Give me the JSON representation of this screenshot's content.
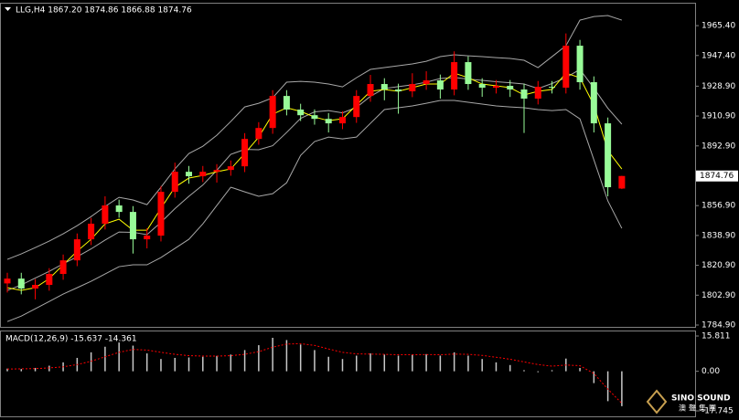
{
  "chart_data": [
    {
      "type": "candlestick",
      "title": "LLG,H4 1867.20 1874.86 1866.88 1874.76",
      "open": [
        1810.0,
        1812.9,
        1806.9,
        1809.1,
        1815.7,
        1823.9,
        1836.6,
        1846.0,
        1857.0,
        1853.1,
        1836.6,
        1838.8,
        1865.2,
        1877.3,
        1874.6,
        1877.3,
        1878.4,
        1880.6,
        1897.1,
        1903.7,
        1923.0,
        1914.8,
        1911.4,
        1909.2,
        1906.5,
        1910.3,
        1923.0,
        1930.2,
        1926.9,
        1925.8,
        1930.2,
        1932.4,
        1926.9,
        1943.4,
        1930.2,
        1928.0,
        1929.1,
        1926.9,
        1921.4,
        1928.5,
        1928.0,
        1953.3,
        1931.3,
        1906.5,
        1867.2
      ],
      "high": [
        1816.4,
        1816.4,
        1812.6,
        1819.2,
        1827.4,
        1840.1,
        1849.5,
        1862.5,
        1860.5,
        1856.6,
        1843.3,
        1868.7,
        1882.8,
        1880.8,
        1880.8,
        1881.9,
        1884.1,
        1900.6,
        1907.2,
        1926.5,
        1926.5,
        1918.3,
        1914.9,
        1912.7,
        1913.8,
        1926.5,
        1935.7,
        1933.7,
        1930.4,
        1936.7,
        1937.9,
        1935.9,
        1949.9,
        1946.9,
        1933.7,
        1932.6,
        1932.6,
        1930.4,
        1932.0,
        1932.0,
        1960.7,
        1956.8,
        1934.8,
        1910.0,
        1874.86
      ],
      "low": [
        1804.5,
        1803.4,
        1800.4,
        1805.6,
        1812.2,
        1820.4,
        1833.1,
        1842.5,
        1849.6,
        1828.0,
        1831.1,
        1835.3,
        1861.7,
        1870.1,
        1871.1,
        1870.8,
        1874.9,
        1877.1,
        1893.6,
        1900.2,
        1911.3,
        1907.9,
        1905.7,
        1901.0,
        1903.0,
        1906.8,
        1919.5,
        1920.4,
        1912.3,
        1922.3,
        1926.7,
        1921.4,
        1923.4,
        1926.7,
        1922.5,
        1924.5,
        1922.4,
        1900.7,
        1917.9,
        1924.5,
        1924.5,
        1926.8,
        1901.0,
        1862.5,
        1866.88
      ],
      "close": [
        1812.9,
        1806.9,
        1809.1,
        1815.7,
        1823.9,
        1836.6,
        1846.0,
        1857.0,
        1853.1,
        1836.6,
        1838.8,
        1865.2,
        1877.3,
        1874.6,
        1877.3,
        1878.4,
        1880.6,
        1897.1,
        1903.7,
        1923.0,
        1914.8,
        1911.4,
        1909.2,
        1906.5,
        1910.3,
        1923.0,
        1930.2,
        1926.9,
        1925.8,
        1930.2,
        1932.4,
        1926.9,
        1943.4,
        1930.2,
        1928.0,
        1929.1,
        1926.9,
        1921.4,
        1928.5,
        1928.0,
        1953.3,
        1931.3,
        1906.5,
        1868.0,
        1874.76
      ],
      "up_color": "#ff0000",
      "down_color": "#98fb98",
      "lines": [
        {
          "color": "#a8a8a8",
          "values": [
            1824.5,
            1827.8,
            1831.6,
            1835.5,
            1839.9,
            1844.8,
            1850.3,
            1856.4,
            1861.9,
            1860.3,
            1857.5,
            1868.0,
            1879.0,
            1888.3,
            1892.7,
            1899.3,
            1907.6,
            1916.4,
            1918.6,
            1921.9,
            1931.3,
            1931.8,
            1931.3,
            1930.2,
            1928.5,
            1934.0,
            1939.0,
            1940.1,
            1941.2,
            1942.3,
            1943.9,
            1946.7,
            1947.8,
            1947.2,
            1946.7,
            1946.1,
            1945.6,
            1944.5,
            1940.1,
            1946.7,
            1953.3,
            1968.7,
            1970.9,
            1971.5,
            1968.7
          ]
        },
        {
          "color": "#a8a8a8",
          "values": [
            1805.8,
            1809.1,
            1813.2,
            1817.3,
            1821.8,
            1826.1,
            1830.8,
            1836.1,
            1841.0,
            1840.8,
            1839.4,
            1846.8,
            1855.1,
            1862.5,
            1869.3,
            1878.2,
            1887.8,
            1890.8,
            1890.6,
            1893.0,
            1901.0,
            1909.5,
            1913.4,
            1914.2,
            1912.8,
            1916.1,
            1922.8,
            1927.5,
            1928.6,
            1929.7,
            1931.3,
            1933.5,
            1934.1,
            1933.2,
            1932.4,
            1931.6,
            1931.0,
            1930.2,
            1927.5,
            1930.5,
            1934.1,
            1939.0,
            1927.7,
            1915.6,
            1906.0
          ]
        },
        {
          "color": "#a8a8a8",
          "values": [
            1787.0,
            1790.3,
            1794.7,
            1799.1,
            1803.6,
            1807.4,
            1811.3,
            1815.7,
            1820.1,
            1821.2,
            1821.2,
            1825.6,
            1831.1,
            1836.6,
            1845.9,
            1857.0,
            1868.0,
            1865.2,
            1862.5,
            1864.1,
            1870.7,
            1887.2,
            1895.5,
            1898.2,
            1897.1,
            1898.2,
            1906.5,
            1914.8,
            1915.9,
            1917.0,
            1918.6,
            1920.3,
            1920.3,
            1919.2,
            1918.1,
            1917.0,
            1916.4,
            1915.9,
            1914.8,
            1914.2,
            1914.8,
            1909.2,
            1884.5,
            1859.7,
            1843.2
          ]
        },
        {
          "color": "#ffff00",
          "values": [
            1807.4,
            1805.8,
            1807.4,
            1812.9,
            1821.2,
            1829.4,
            1836.6,
            1845.9,
            1848.7,
            1842.1,
            1842.1,
            1855.3,
            1868.0,
            1873.5,
            1875.1,
            1877.3,
            1879.0,
            1888.3,
            1898.2,
            1912.0,
            1915.9,
            1913.7,
            1910.3,
            1908.1,
            1909.2,
            1917.5,
            1925.8,
            1926.9,
            1925.8,
            1928.0,
            1930.2,
            1930.2,
            1936.8,
            1934.0,
            1930.2,
            1929.1,
            1928.0,
            1923.6,
            1925.8,
            1926.9,
            1936.8,
            1934.0,
            1917.5,
            1890.0,
            1879.0
          ]
        }
      ],
      "last_price": 1874.76,
      "ylim": [
        1783.8,
        1978.1
      ],
      "yticks": [
        {
          "value": 1965.4,
          "label": "1965.40"
        },
        {
          "value": 1947.4,
          "label": "1947.40"
        },
        {
          "value": 1928.9,
          "label": "1928.90"
        },
        {
          "value": 1910.9,
          "label": "1910.90"
        },
        {
          "value": 1892.9,
          "label": "1892.90"
        },
        {
          "value": 1856.9,
          "label": "1856.90"
        },
        {
          "value": 1838.9,
          "label": "1838.90"
        },
        {
          "value": 1820.9,
          "label": "1820.90"
        },
        {
          "value": 1802.9,
          "label": "1802.90"
        },
        {
          "value": 1784.9,
          "label": "1784.90"
        }
      ]
    },
    {
      "type": "macd",
      "title": "MACD(12,26,9) -15.637 -14.361",
      "values": [
        1.2,
        1.0,
        1.5,
        2.5,
        4.0,
        6.0,
        8.5,
        11.0,
        12.9,
        11.5,
        8.0,
        5.5,
        6.0,
        6.2,
        6.5,
        6.9,
        7.5,
        9.5,
        11.7,
        15.0,
        14.0,
        12.0,
        9.5,
        6.5,
        5.5,
        7.0,
        8.0,
        7.5,
        7.0,
        7.5,
        7.7,
        7.0,
        8.5,
        7.0,
        5.5,
        4.0,
        2.8,
        0.5,
        -0.4,
        0.5,
        5.7,
        1.5,
        -5.3,
        -13.4,
        -15.637
      ],
      "color": "#c8c8c8",
      "signal_values": [
        1.0,
        1.1,
        1.2,
        1.5,
        2.0,
        3.0,
        4.5,
        6.5,
        8.5,
        9.8,
        9.5,
        8.5,
        7.6,
        7.0,
        6.8,
        6.8,
        7.0,
        7.6,
        8.8,
        10.8,
        12.2,
        12.4,
        11.6,
        10.0,
        8.5,
        7.8,
        7.7,
        7.6,
        7.4,
        7.4,
        7.5,
        7.4,
        7.7,
        7.6,
        7.1,
        6.3,
        5.4,
        4.2,
        3.0,
        2.3,
        2.8,
        2.5,
        -1.0,
        -8.0,
        -14.361
      ],
      "signal_color": "#ff0000",
      "ylim": [
        -17.745,
        15.811
      ],
      "yticks": [
        15.811,
        {
          "value": 0,
          "label": "0.00"
        },
        -17.745
      ]
    }
  ],
  "watermark": {
    "title": "SINO SOUND",
    "subtitle": "澳聲集團"
  }
}
